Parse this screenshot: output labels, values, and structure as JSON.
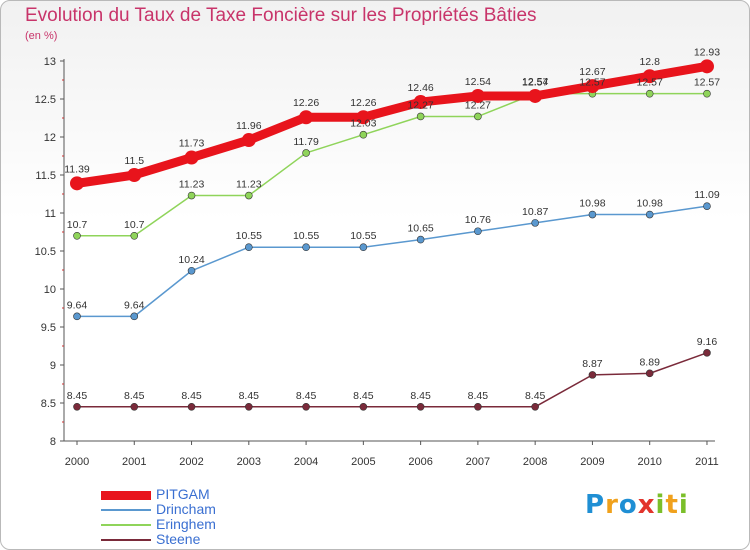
{
  "title": "Evolution du Taux de Taxe Foncière sur les Propriétés Bâties",
  "unit": "(en %)",
  "logo": {
    "text": "Proxiti",
    "colors": [
      "#1f8fd4",
      "#f0a11c",
      "#1f8fd4",
      "#e2342c",
      "#7bbf2a",
      "#f0a11c",
      "#7bbf2a"
    ]
  },
  "chart_data": {
    "type": "line",
    "x": [
      "2000",
      "2001",
      "2002",
      "2003",
      "2004",
      "2005",
      "2006",
      "2007",
      "2008",
      "2009",
      "2010",
      "2011"
    ],
    "ylim": [
      8,
      13
    ],
    "yticks": [
      "8",
      "8.5",
      "9",
      "9.5",
      "10",
      "10.5",
      "11",
      "11.5",
      "12",
      "12.5",
      "13"
    ],
    "grid": false,
    "legend_position": "bottom-left",
    "series": [
      {
        "name": "PITGAM",
        "color": "#e8141c",
        "width": 9,
        "marker_r": 7,
        "values": [
          11.39,
          11.5,
          11.73,
          11.96,
          12.26,
          12.26,
          12.46,
          12.54,
          12.54,
          12.67,
          12.8,
          12.93
        ],
        "labels": [
          "11.39",
          "11.5",
          "11.73",
          "11.96",
          "12.26",
          "12.26",
          "12.46",
          "12.54",
          "12.54",
          "12.67",
          "12.8",
          "12.93"
        ]
      },
      {
        "name": "Drincham",
        "color": "#5a98cf",
        "width": 1.5,
        "marker_r": 3.5,
        "values": [
          9.64,
          9.64,
          10.24,
          10.55,
          10.55,
          10.55,
          10.65,
          10.76,
          10.87,
          10.98,
          10.98,
          11.09
        ],
        "labels": [
          "9.64",
          "9.64",
          "10.24",
          "10.55",
          "10.55",
          "10.55",
          "10.65",
          "10.76",
          "10.87",
          "10.98",
          "10.98",
          "11.09"
        ]
      },
      {
        "name": "Eringhem",
        "color": "#8fd45a",
        "width": 1.5,
        "marker_r": 3.5,
        "values": [
          10.7,
          10.7,
          11.23,
          11.23,
          11.79,
          12.03,
          12.27,
          12.27,
          12.57,
          12.57,
          12.57,
          12.57
        ],
        "labels": [
          "10.7",
          "10.7",
          "11.23",
          "11.23",
          "11.79",
          "12.03",
          "12.27",
          "12.27",
          "12.57",
          "12.57",
          "12.57",
          "12.57"
        ]
      },
      {
        "name": "Steene",
        "color": "#7a2a3a",
        "width": 1.5,
        "marker_r": 3.5,
        "values": [
          8.45,
          8.45,
          8.45,
          8.45,
          8.45,
          8.45,
          8.45,
          8.45,
          8.45,
          8.87,
          8.89,
          9.16
        ],
        "labels": [
          "8.45",
          "8.45",
          "8.45",
          "8.45",
          "8.45",
          "8.45",
          "8.45",
          "8.45",
          "8.45",
          "8.87",
          "8.89",
          "9.16"
        ]
      }
    ]
  }
}
